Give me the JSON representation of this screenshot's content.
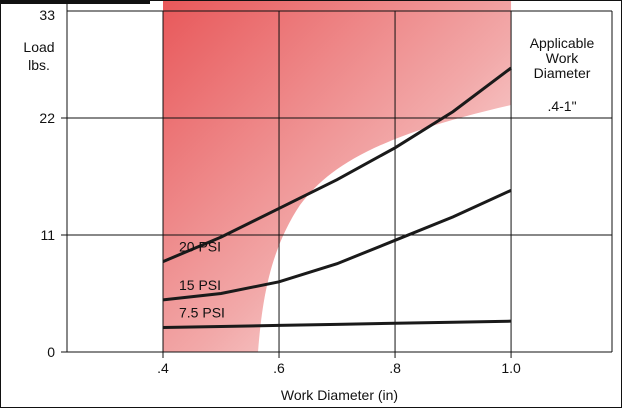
{
  "chart_data": {
    "type": "line",
    "ylabel": [
      "Load",
      "lbs."
    ],
    "xlabel": "Work Diameter (in)",
    "annotation": [
      "Applicable",
      "Work",
      "Diameter",
      ".4-1\""
    ],
    "x": [
      0.4,
      0.5,
      0.6,
      0.7,
      0.8,
      0.9,
      1.0
    ],
    "series": [
      {
        "name": "20 PSI",
        "color": "#1a1a1a",
        "values": [
          8.5,
          10.8,
          13.5,
          16.2,
          19.2,
          22.6,
          26.7
        ]
      },
      {
        "name": "15 PSI",
        "color": "#1a1a1a",
        "values": [
          4.9,
          5.5,
          6.6,
          8.3,
          10.5,
          12.7,
          15.2
        ]
      },
      {
        "name": "7.5 PSI",
        "color": "#1a1a1a",
        "values": [
          2.3,
          2.4,
          2.5,
          2.6,
          2.7,
          2.8,
          2.9
        ]
      }
    ],
    "xlim": [
      0.2345,
      1.174
    ],
    "ylim": [
      0,
      33
    ],
    "xticks": [
      {
        "value": 0.4,
        "label": ".4"
      },
      {
        "value": 0.6,
        "label": ".6"
      },
      {
        "value": 0.8,
        "label": ".8"
      },
      {
        "value": 1.0,
        "label": "1.0"
      }
    ],
    "yticks": [
      0,
      11,
      22,
      33
    ],
    "grid": true
  }
}
